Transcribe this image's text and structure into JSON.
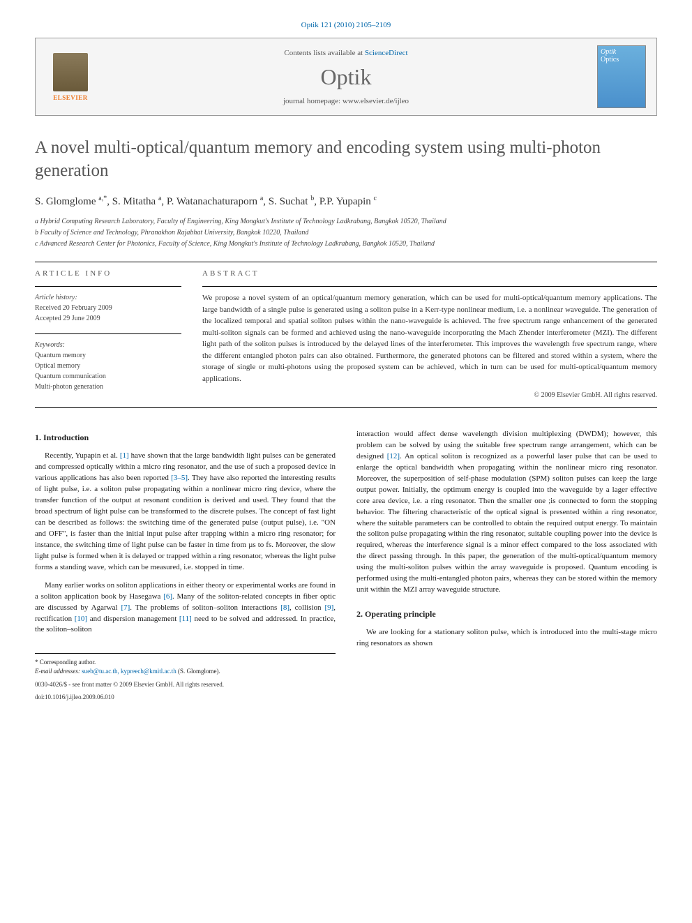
{
  "journal_ref": "Optik 121 (2010) 2105–2109",
  "contents_box": {
    "contents_line_prefix": "Contents lists available at ",
    "contents_link": "ScienceDirect",
    "journal_title": "Optik",
    "homepage_prefix": "journal homepage: ",
    "homepage_link": "www.elsevier.de/ijleo",
    "elsevier_label": "ELSEVIER",
    "cover_label1": "Optik",
    "cover_label2": "Optics"
  },
  "article": {
    "title": "A novel multi-optical/quantum memory and encoding system using multi-photon generation",
    "authors_html": "S. Glomglome <sup>a,*</sup>, S. Mitatha <sup>a</sup>, P. Watanachaturaporn <sup>a</sup>, S. Suchat <sup>b</sup>, P.P. Yupapin <sup>c</sup>",
    "affiliations": [
      "a Hybrid Computing Research Laboratory, Faculty of Engineering, King Mongkut's Institute of Technology Ladkrabang, Bangkok 10520, Thailand",
      "b Faculty of Science and Technology, Phranakhon Rajabhat University, Bangkok 10220, Thailand",
      "c Advanced Research Center for Photonics, Faculty of Science, King Mongkut's Institute of Technology Ladkrabang, Bangkok 10520, Thailand"
    ]
  },
  "info": {
    "heading": "article info",
    "history_label": "Article history:",
    "received": "Received 20 February 2009",
    "accepted": "Accepted 29 June 2009",
    "keywords_label": "Keywords:",
    "keywords": [
      "Quantum memory",
      "Optical memory",
      "Quantum communication",
      "Multi-photon generation"
    ]
  },
  "abstract": {
    "heading": "abstract",
    "text": "We propose a novel system of an optical/quantum memory generation, which can be used for multi-optical/quantum memory applications. The large bandwidth of a single pulse is generated using a soliton pulse in a Kerr-type nonlinear medium, i.e. a nonlinear waveguide. The generation of the localized temporal and spatial soliton pulses within the nano-waveguide is achieved. The free spectrum range enhancement of the generated multi-soliton signals can be formed and achieved using the nano-waveguide incorporating the Mach Zhender interferometer (MZI). The different light path of the soliton pulses is introduced by the delayed lines of the interferometer. This improves the wavelength free spectrum range, where the different entangled photon pairs can also obtained. Furthermore, the generated photons can be filtered and stored within a system, where the storage of single or multi-photons using the proposed system can be achieved, which in turn can be used for multi-optical/quantum memory applications.",
    "copyright": "© 2009 Elsevier GmbH. All rights reserved."
  },
  "body": {
    "sec1_heading": "1. Introduction",
    "sec1_p1_a": "Recently, Yupapin et al. ",
    "sec1_p1_ref1": "[1]",
    "sec1_p1_b": " have shown that the large bandwidth light pulses can be generated and compressed optically within a micro ring resonator, and the use of such a proposed device in various applications has also been reported ",
    "sec1_p1_ref2": "[3–5]",
    "sec1_p1_c": ". They have also reported the interesting results of light pulse, i.e. a soliton pulse propagating within a nonlinear micro ring device, where the transfer function of the output at resonant condition is derived and used. They found that the broad spectrum of light pulse can be transformed to the discrete pulses. The concept of fast light can be described as follows: the switching time of the generated pulse (output pulse), i.e. \"ON and OFF\", is faster than the initial input pulse after trapping within a micro ring resonator; for instance, the switching time of light pulse can be faster in time from µs to fs. Moreover, the slow light pulse is formed when it is delayed or trapped within a ring resonator, whereas the light pulse forms a standing wave, which can be measured, i.e. stopped in time.",
    "sec1_p2_a": "Many earlier works on soliton applications in either theory or experimental works are found in a soliton application book by Hasegawa ",
    "sec1_p2_ref6": "[6]",
    "sec1_p2_b": ". Many of the soliton-related concepts in fiber optic are discussed by Agarwal ",
    "sec1_p2_ref7": "[7]",
    "sec1_p2_c": ". The problems of soliton–soliton interactions ",
    "sec1_p2_ref8": "[8]",
    "sec1_p2_d": ", collision ",
    "sec1_p2_ref9": "[9]",
    "sec1_p2_e": ", rectification ",
    "sec1_p2_ref10": "[10]",
    "sec1_p2_f": " and dispersion management ",
    "sec1_p2_ref11": "[11]",
    "sec1_p2_g": " need to be solved and addressed. In practice, the soliton–soliton",
    "col2_p1_a": "interaction would affect dense wavelength division multiplexing (DWDM); however, this problem can be solved by using the suitable free spectrum range arrangement, which can be designed ",
    "col2_p1_ref12": "[12]",
    "col2_p1_b": ". An optical soliton is recognized as a powerful laser pulse that can be used to enlarge the optical bandwidth when propagating within the nonlinear micro ring resonator. Moreover, the superposition of self-phase modulation (SPM) soliton pulses can keep the large output power. Initially, the optimum energy is coupled into the waveguide by a lager effective core area device, i.e. a ring resonator. Then the smaller one ;is connected to form the stopping behavior. The filtering characteristic of the optical signal is presented within a ring resonator, where the suitable parameters can be controlled to obtain the required output energy. To maintain the soliton pulse propagating within the ring resonator, suitable coupling power into the device is required, whereas the interference signal is a minor effect compared to the loss associated with the direct passing through. In this paper, the generation of the multi-optical/quantum memory using the multi-soliton pulses within the array waveguide is proposed. Quantum encoding is performed using the multi-entangled photon pairs, whereas they can be stored within the memory unit within the MZI array waveguide structure.",
    "sec2_heading": "2. Operating principle",
    "sec2_p1": "We are looking for a stationary soliton pulse, which is introduced into the multi-stage micro ring resonators as shown"
  },
  "footer": {
    "corresponding": "* Corresponding author.",
    "email_label": "E-mail addresses: ",
    "emails": "sueb@tu.ac.th, kypreech@kmitl.ac.th",
    "email_suffix": " (S. Glomglome).",
    "issn_line": "0030-4026/$ - see front matter © 2009 Elsevier GmbH. All rights reserved.",
    "doi": "doi:10.1016/j.ijleo.2009.06.010"
  },
  "colors": {
    "link": "#0066aa",
    "heading_gray": "#555555",
    "elsevier_orange": "#ee7722"
  }
}
